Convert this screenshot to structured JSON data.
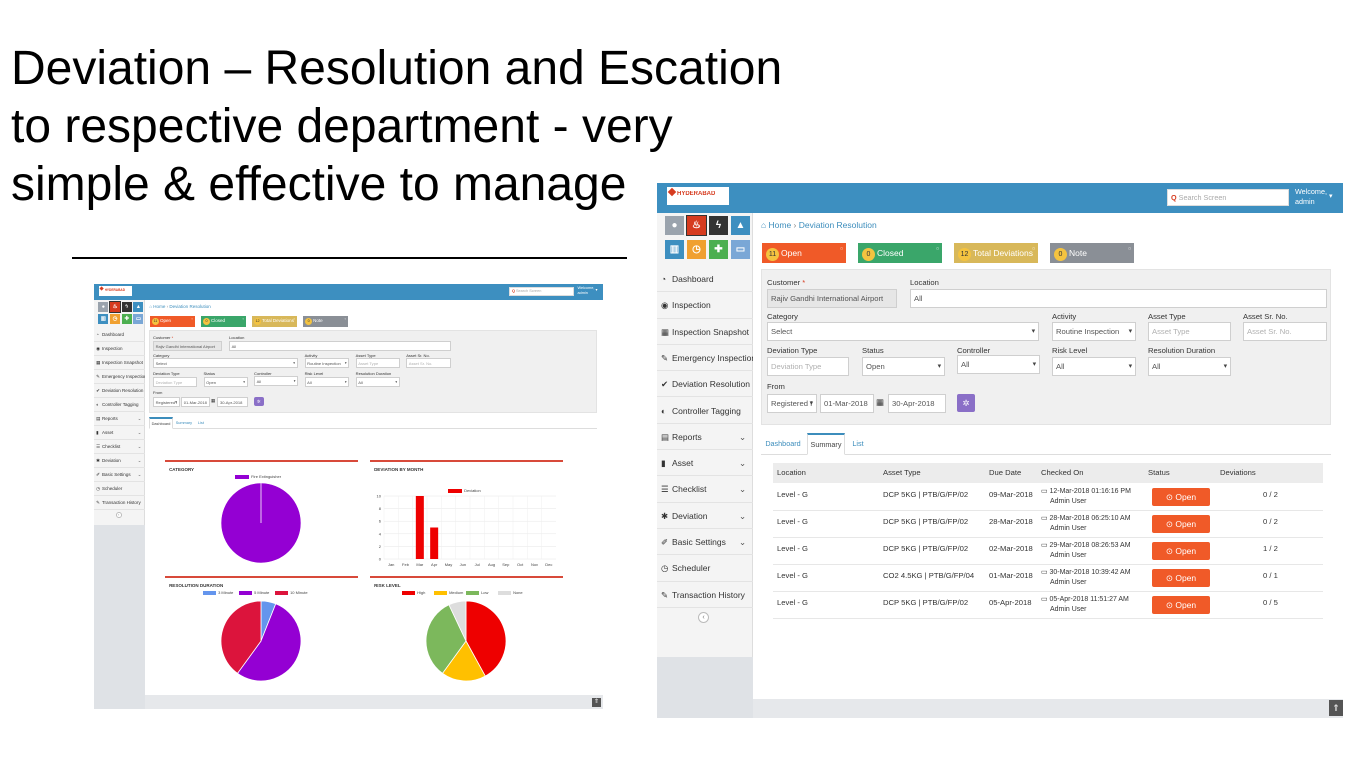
{
  "slide": {
    "title": "Deviation – Resolution and Escation\nto respective department - very\nsimple & effective to manage"
  },
  "app": {
    "logo_text": "HYDERABAD",
    "search_placeholder": "Search Screen",
    "welcome_line1": "Welcome,",
    "welcome_line2": "admin",
    "quick_icons": [
      {
        "name": "info-circle-icon",
        "glyph": "●",
        "color": "#9aa3ad"
      },
      {
        "name": "fire-icon",
        "glyph": "♨",
        "color": "#d63b1f"
      },
      {
        "name": "bolt-icon",
        "glyph": "ϟ",
        "color": "#333333"
      },
      {
        "name": "warning-icon",
        "glyph": "▲",
        "color": "#3d8fc0"
      },
      {
        "name": "building-icon",
        "glyph": "▥",
        "color": "#3d8fc0"
      },
      {
        "name": "clock-icon",
        "glyph": "◷",
        "color": "#f0a030"
      },
      {
        "name": "ambulance-icon",
        "glyph": "✚",
        "color": "#4caf50"
      },
      {
        "name": "laptop-icon",
        "glyph": "▭",
        "color": "#7aa7d6"
      }
    ],
    "nav": [
      {
        "label": "Dashboard",
        "icon": "dashboard-icon",
        "glyph": "◔",
        "chevron": false
      },
      {
        "label": "Inspection",
        "icon": "eye-icon",
        "glyph": "◉",
        "chevron": false
      },
      {
        "label": "Inspection Snapshot",
        "icon": "calendar-icon",
        "glyph": "▦",
        "chevron": false
      },
      {
        "label": "Emergency Inspection",
        "icon": "edit-icon",
        "glyph": "✎",
        "chevron": false
      },
      {
        "label": "Deviation Resolution",
        "icon": "check-icon",
        "glyph": "✔",
        "chevron": false
      },
      {
        "label": "Controller Tagging",
        "icon": "user-icon",
        "glyph": "◐",
        "chevron": false
      },
      {
        "label": "Reports",
        "icon": "report-icon",
        "glyph": "▤",
        "chevron": true
      },
      {
        "label": "Asset",
        "icon": "asset-icon",
        "glyph": "▮",
        "chevron": true
      },
      {
        "label": "Checklist",
        "icon": "list-icon",
        "glyph": "☰",
        "chevron": true
      },
      {
        "label": "Deviation",
        "icon": "bug-icon",
        "glyph": "✱",
        "chevron": true
      },
      {
        "label": "Basic Settings",
        "icon": "wrench-icon",
        "glyph": "✐",
        "chevron": true
      },
      {
        "label": "Scheduler",
        "icon": "scheduler-icon",
        "glyph": "◷",
        "chevron": false
      },
      {
        "label": "Transaction History",
        "icon": "history-icon",
        "glyph": "✎",
        "chevron": false
      }
    ],
    "breadcrumb": {
      "home": "Home",
      "current": "Deviation Resolution"
    },
    "stats": [
      {
        "count": "11",
        "label": "Open",
        "color": "#f05a28"
      },
      {
        "count": "0",
        "label": "Closed",
        "color": "#3aa66a"
      },
      {
        "count": "12",
        "label": "Total Deviations",
        "color": "#d8b85a"
      },
      {
        "count": "0",
        "label": "Note",
        "color": "#8a8f96"
      }
    ],
    "filters": {
      "customer_label": "Customer",
      "customer_value": "Rajiv Gandhi International Airport",
      "location_label": "Location",
      "location_value": "All",
      "category_label": "Category",
      "category_value": "Select",
      "activity_label": "Activity",
      "activity_value": "Routine Inspection",
      "asset_type_label": "Asset Type",
      "asset_type_placeholder": "Asset Type",
      "asset_sr_label": "Asset Sr. No.",
      "asset_sr_placeholder": "Asset Sr. No.",
      "deviation_type_label": "Deviation Type",
      "deviation_type_placeholder": "Deviation Type",
      "status_label": "Status",
      "status_value": "Open",
      "controller_label": "Controller",
      "controller_value": "All",
      "risk_label": "Risk Level",
      "risk_value": "All",
      "resolution_label": "Resolution Duration",
      "resolution_value": "All",
      "from_label": "From",
      "from_type": "Registered I",
      "from_date": "01-Mar-2018",
      "to_date": "30-Apr-2018"
    },
    "tabs": [
      "Dashboard",
      "Summary",
      "List"
    ],
    "table": {
      "headers": [
        "Location",
        "Asset Type",
        "Due Date",
        "Checked On",
        "Status",
        "Deviations"
      ],
      "open_label": "Open",
      "rows": [
        {
          "location": "Level - G",
          "asset": "DCP 5KG | PTB/G/FP/02",
          "due": "09-Mar-2018",
          "checked": "12-Mar-2018 01:16:16 PM",
          "by": "Admin User",
          "dev": "0 / 2"
        },
        {
          "location": "Level - G",
          "asset": "DCP 5KG | PTB/G/FP/02",
          "due": "28-Mar-2018",
          "checked": "28-Mar-2018 06:25:10 AM",
          "by": "Admin User",
          "dev": "0 / 2"
        },
        {
          "location": "Level - G",
          "asset": "DCP 5KG | PTB/G/FP/02",
          "due": "02-Mar-2018",
          "checked": "29-Mar-2018 08:26:53 AM",
          "by": "Admin User",
          "dev": "1 / 2"
        },
        {
          "location": "Level - G",
          "asset": "CO2 4.5KG | PTB/G/FP/04",
          "due": "01-Mar-2018",
          "checked": "30-Mar-2018 10:39:42 AM",
          "by": "Admin User",
          "dev": "0 / 1"
        },
        {
          "location": "Level - G",
          "asset": "DCP 5KG | PTB/G/FP/02",
          "due": "05-Apr-2018",
          "checked": "05-Apr-2018 11:51:27 AM",
          "by": "Admin User",
          "dev": "0 / 5"
        }
      ]
    }
  },
  "dashboard": {
    "category": {
      "title": "CATEGORY",
      "legend": [
        "Fire Extinguisher"
      ],
      "slices": [
        {
          "label": "Fire Extinguisher",
          "value": 100,
          "color": "#9400d3"
        }
      ]
    },
    "by_month": {
      "title": "DEVIATION BY MONTH",
      "legend": "Deviation",
      "months": [
        "Jan",
        "Feb",
        "Mar",
        "Apr",
        "May",
        "Jun",
        "Jul",
        "Aug",
        "Sep",
        "Oct",
        "Nov",
        "Dec"
      ],
      "values": [
        0,
        0,
        10,
        5,
        0,
        0,
        0,
        0,
        0,
        0,
        0,
        0
      ],
      "yticks": [
        "0",
        "2",
        "4",
        "6",
        "8",
        "10"
      ],
      "ymax": 10,
      "color": "#ee0000"
    },
    "resolution": {
      "title": "RESOLUTION DURATION",
      "legend": [
        {
          "label": "3 Minute",
          "color": "#6495ed"
        },
        {
          "label": "5 Minute",
          "color": "#9400d3"
        },
        {
          "label": "10 Minute",
          "color": "#dc143c"
        }
      ],
      "slices": [
        6,
        54,
        40
      ]
    },
    "risk": {
      "title": "RISK LEVEL",
      "legend": [
        {
          "label": "High",
          "color": "#ee0000"
        },
        {
          "label": "Medium",
          "color": "#ffc000"
        },
        {
          "label": "Low",
          "color": "#7cb85c"
        },
        {
          "label": "None",
          "color": "#dddddd"
        }
      ],
      "slices": [
        42,
        18,
        33,
        7
      ]
    }
  },
  "chart_data": [
    {
      "type": "pie",
      "title": "CATEGORY",
      "categories": [
        "Fire Extinguisher"
      ],
      "values": [
        100
      ]
    },
    {
      "type": "bar",
      "title": "DEVIATION BY MONTH",
      "categories": [
        "Jan",
        "Feb",
        "Mar",
        "Apr",
        "May",
        "Jun",
        "Jul",
        "Aug",
        "Sep",
        "Oct",
        "Nov",
        "Dec"
      ],
      "series": [
        {
          "name": "Deviation",
          "values": [
            0,
            0,
            10,
            5,
            0,
            0,
            0,
            0,
            0,
            0,
            0,
            0
          ]
        }
      ],
      "ylim": [
        0,
        10
      ]
    },
    {
      "type": "pie",
      "title": "RESOLUTION DURATION",
      "categories": [
        "3 Minute",
        "5 Minute",
        "10 Minute"
      ],
      "values": [
        6,
        54,
        40
      ]
    },
    {
      "type": "pie",
      "title": "RISK LEVEL",
      "categories": [
        "High",
        "Medium",
        "Low",
        "None"
      ],
      "values": [
        42,
        18,
        33,
        7
      ]
    }
  ]
}
